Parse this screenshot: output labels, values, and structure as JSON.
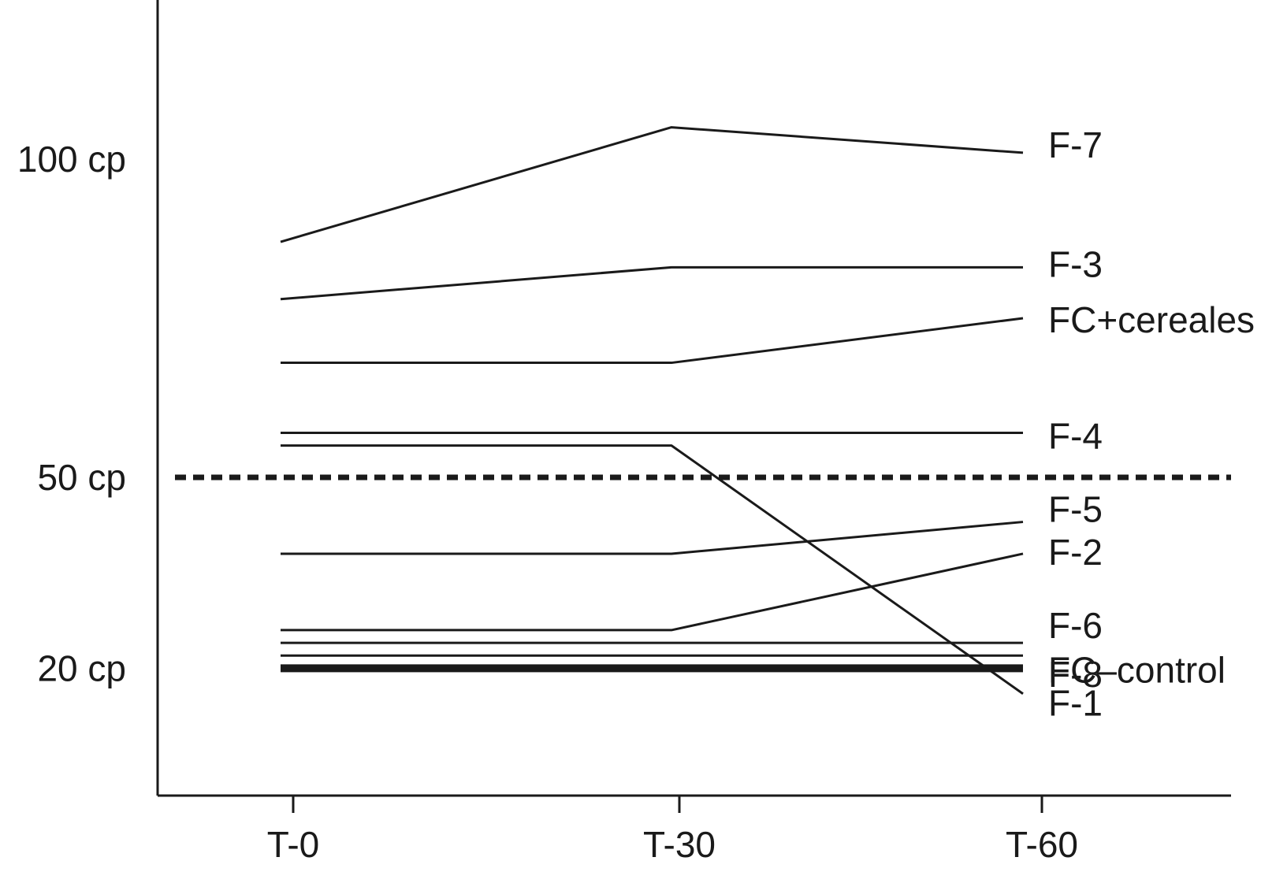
{
  "chart_data": {
    "type": "line",
    "categories": [
      "T-0",
      "T-30",
      "T-60"
    ],
    "yticks": [
      {
        "value": 100,
        "label": "100 cp"
      },
      {
        "value": 50,
        "label": "50 cp"
      },
      {
        "value": 20,
        "label": "20 cp"
      }
    ],
    "ylim": [
      0,
      125
    ],
    "threshold": {
      "value": 50,
      "style": "dotted"
    },
    "grid": false,
    "series": [
      {
        "name": "F-7",
        "values": [
          87,
          105,
          101
        ]
      },
      {
        "name": "F-3",
        "values": [
          78,
          83,
          83
        ]
      },
      {
        "name": "FC+cereales",
        "values": [
          68,
          68,
          75
        ]
      },
      {
        "name": "F-4",
        "values": [
          57,
          57,
          57
        ]
      },
      {
        "name": "F-1",
        "values": [
          55,
          55,
          16
        ]
      },
      {
        "name": "F-5",
        "values": [
          38,
          38,
          43
        ]
      },
      {
        "name": "F-2",
        "values": [
          26,
          26,
          38
        ]
      },
      {
        "name": "F-6",
        "values": [
          24,
          24,
          24
        ]
      },
      {
        "name": "F-8",
        "values": [
          22,
          22,
          22
        ]
      },
      {
        "name": "FC–control",
        "values": [
          20,
          20,
          20
        ],
        "emphasis": true
      }
    ]
  }
}
